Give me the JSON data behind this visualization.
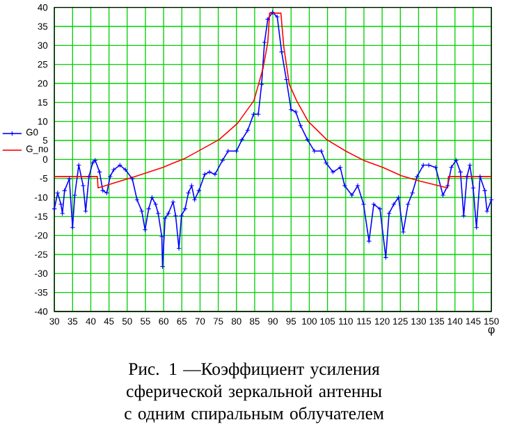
{
  "chart_data": {
    "type": "line",
    "xlabel": "φ",
    "annotations": [
      "Рис. 1 —Коэффициент усиления сферической зеркальной антенны с одним спиральным облучателем"
    ],
    "xlim": [
      30,
      150
    ],
    "ylim": [
      -40,
      40
    ],
    "xticks": [
      30,
      35,
      40,
      45,
      50,
      55,
      60,
      65,
      70,
      75,
      80,
      85,
      90,
      95,
      100,
      105,
      110,
      115,
      120,
      125,
      130,
      135,
      140,
      145,
      150
    ],
    "yticks": [
      -40,
      -35,
      -30,
      -25,
      -20,
      -15,
      -10,
      -5,
      0,
      5,
      10,
      15,
      20,
      25,
      30,
      35,
      40
    ],
    "grid": true,
    "legend": "left",
    "series": [
      {
        "name": "G0",
        "color": "#0000ff",
        "marker": "cross",
        "x": [
          30,
          30.9,
          31.8,
          32.2,
          32.8,
          34.1,
          35,
          35.6,
          36.7,
          37.9,
          38.6,
          39.5,
          40.5,
          41.2,
          42.4,
          43.3,
          44.4,
          45.3,
          46.3,
          48,
          49.5,
          51.4,
          52.7,
          54,
          54.9,
          55.9,
          56.8,
          57.8,
          58.5,
          59.5,
          59.7,
          60.4,
          61.3,
          62.6,
          63.3,
          64.2,
          64.9,
          65.9,
          66.8,
          67.7,
          68.5,
          69.7,
          71.3,
          72.6,
          74.1,
          76.2,
          77.7,
          80,
          81.5,
          83.1,
          84.7,
          86,
          86.9,
          87.7,
          88.6,
          89.9,
          91.2,
          92.4,
          93.7,
          95,
          96.3,
          97.6,
          99.5,
          101.4,
          103.3,
          104.6,
          106.5,
          108.5,
          109.7,
          111.7,
          113.3,
          114.9,
          116.4,
          117.7,
          119.4,
          121,
          121.9,
          123.2,
          124.5,
          125.8,
          127.1,
          128.3,
          129.6,
          131.3,
          132.8,
          134.7,
          136.7,
          138,
          139,
          140.3,
          141.5,
          142.4,
          143.3,
          144.1,
          145,
          145.9,
          146.9,
          148.2,
          148.8,
          150
        ],
        "values": [
          -13,
          -8.8,
          -11.8,
          -14.2,
          -8.2,
          -5.1,
          -17.9,
          -9.4,
          -1.5,
          -6.9,
          -13.6,
          -4.5,
          -0.9,
          -0.2,
          -3.3,
          -8.2,
          -8.8,
          -4.5,
          -2.7,
          -1.5,
          -2.7,
          -5.1,
          -10.6,
          -13.6,
          -18.5,
          -13,
          -10,
          -11.8,
          -14.2,
          -20.3,
          -28.2,
          -15.5,
          -14.2,
          -11.2,
          -14.8,
          -23.4,
          -14.8,
          -13,
          -8.8,
          -6.9,
          -10.6,
          -8.2,
          -3.9,
          -3.3,
          -3.9,
          -0.2,
          2.2,
          2.2,
          5.2,
          7.7,
          11.9,
          11.9,
          19.8,
          30.8,
          36.9,
          38.7,
          37.5,
          28.3,
          21,
          13.1,
          12.5,
          8.9,
          5.2,
          2.2,
          2.2,
          -0.9,
          -3.3,
          -2.1,
          -6.9,
          -9.4,
          -6.9,
          -11.8,
          -21.5,
          -11.8,
          -13,
          -25.8,
          -14.2,
          -11.8,
          -10,
          -19.1,
          -11.8,
          -8.8,
          -4.5,
          -1.5,
          -1.5,
          -2.1,
          -9.4,
          -6.9,
          -2.1,
          -0.2,
          -3.3,
          -14.8,
          -4.5,
          -1.5,
          -7.5,
          -17.9,
          -4.5,
          -8.2,
          -13.6,
          -10.6
        ]
      },
      {
        "name": "G_по",
        "color": "#ff0000",
        "marker": "none",
        "x": [
          30,
          41.8,
          42,
          52.1,
          59.8,
          66.1,
          75.2,
          80.3,
          84.8,
          87.3,
          88.6,
          89.1,
          92.2,
          93,
          94.5,
          96.5,
          99.7,
          104.8,
          110,
          115.1,
          120.2,
          125.3,
          130.4,
          138,
          138.2,
          150
        ],
        "values": [
          -4.5,
          -4.5,
          -7.5,
          -4.5,
          -2.1,
          0.4,
          5.2,
          9.5,
          15.5,
          24,
          30.8,
          38.5,
          38.5,
          29.6,
          19.8,
          15.5,
          10,
          5.2,
          2.2,
          -0.3,
          -2.1,
          -4.3,
          -5.7,
          -7.5,
          -4.5,
          -4.5
        ]
      }
    ]
  }
}
